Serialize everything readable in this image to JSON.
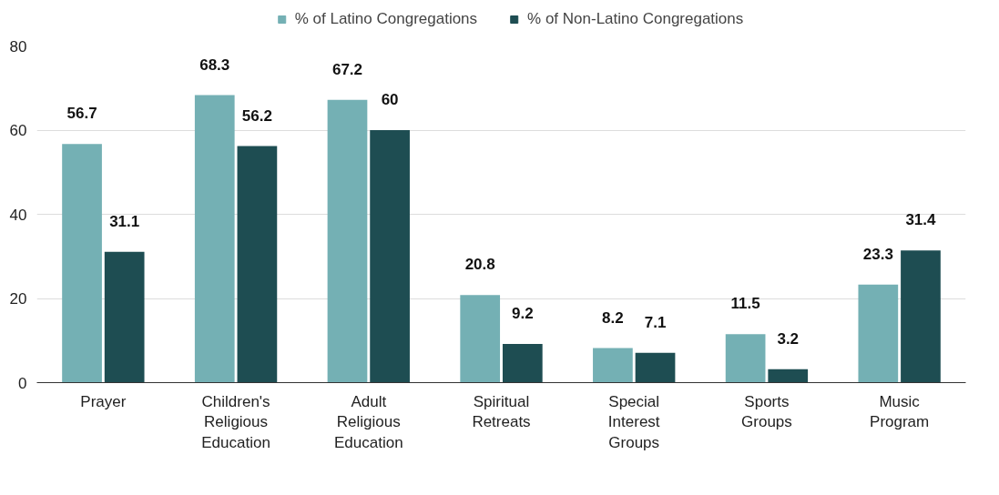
{
  "chart_data": {
    "type": "bar",
    "categories": [
      "Prayer",
      "Children's Religious Education",
      "Adult Religious Education",
      "Spiritual Retreats",
      "Special Interest Groups",
      "Sports Groups",
      "Music Program"
    ],
    "series": [
      {
        "name": "% of Latino Congregations",
        "color": "#74b0b4",
        "values": [
          56.7,
          68.3,
          67.2,
          20.8,
          8.2,
          11.5,
          23.3
        ]
      },
      {
        "name": "% of Non-Latino Congregations",
        "color": "#1e4d52",
        "values": [
          31.1,
          56.2,
          60,
          9.2,
          7.1,
          3.2,
          31.4
        ]
      }
    ],
    "ylim": [
      0,
      80
    ],
    "yticks": [
      0,
      20,
      40,
      60,
      80
    ],
    "grid": "y",
    "legend": "top",
    "data_labels": true
  }
}
